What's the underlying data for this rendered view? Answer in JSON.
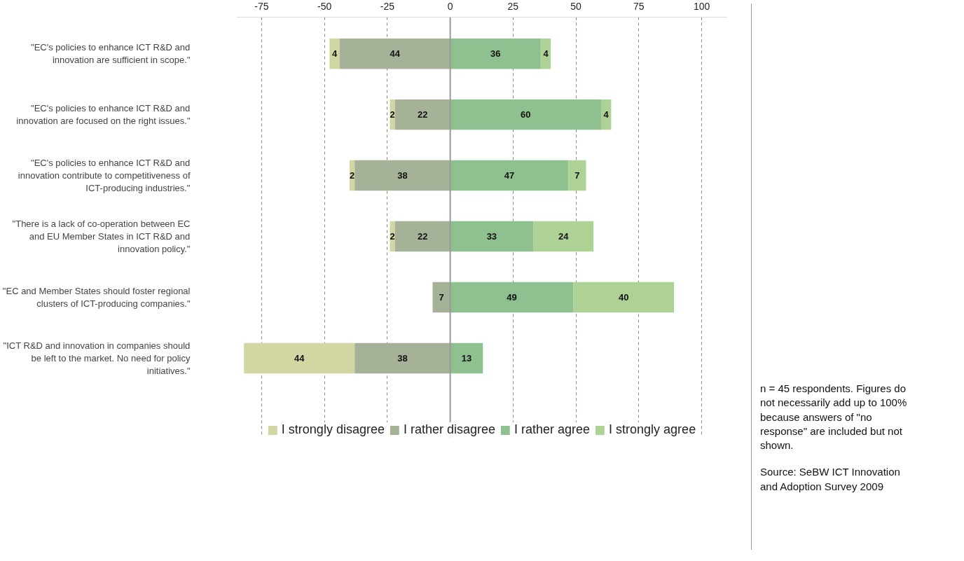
{
  "chart_data": {
    "type": "bar",
    "orientation": "horizontal",
    "categories": [
      "\"EC's policies to enhance ICT R&D and innovation are sufficient in scope.\"",
      "\"EC's policies to enhance ICT R&D and innovation are focused on the right issues.\"",
      "\"EC's policies to enhance ICT R&D and innovation contribute to competitiveness of ICT-producing industries.\"",
      "\"There is a lack of co-operation between EC and EU Member States in ICT R&D and innovation policy.\"",
      "\"EC and Member States should foster regional clusters of ICT-producing companies.\"",
      "\"ICT R&D and innovation in companies should be left to the market. No need for policy initiatives.\""
    ],
    "series": [
      {
        "name": "I strongly disagree",
        "color": "#d1d6a3",
        "values": [
          4,
          2,
          2,
          2,
          null,
          44
        ],
        "base": [
          -48,
          -24,
          -40,
          -24,
          null,
          -82
        ]
      },
      {
        "name": "I rather disagree",
        "color": "#a5b298",
        "values": [
          44,
          22,
          38,
          22,
          7,
          38
        ],
        "base": [
          -44,
          -22,
          -38,
          -22,
          -7,
          -38
        ]
      },
      {
        "name": "I rather agree",
        "color": "#8fc190",
        "values": [
          36,
          60,
          47,
          33,
          49,
          13
        ],
        "base": [
          0,
          0,
          0,
          0,
          0,
          0
        ]
      },
      {
        "name": "I strongly agree",
        "color": "#aed196",
        "values": [
          4,
          4,
          7,
          24,
          40,
          null
        ],
        "base": [
          36,
          60,
          47,
          33,
          49,
          null
        ]
      }
    ],
    "xlim": [
      -85,
      110
    ],
    "xticks": [
      -75,
      -50,
      -25,
      0,
      25,
      50,
      75,
      100
    ],
    "grid": "x",
    "legend": "bottom",
    "data_labels": true,
    "ref_lines": [
      {
        "axis": "x",
        "value": 0,
        "color": "#999999"
      }
    ],
    "annotations": [
      "n = 45 respondents. Figures do not necessarily add up to 100% because answers of \"no response\" are included but not shown.",
      "Source: SeBW ICT Innovation and Adoption Survey 2009"
    ]
  }
}
